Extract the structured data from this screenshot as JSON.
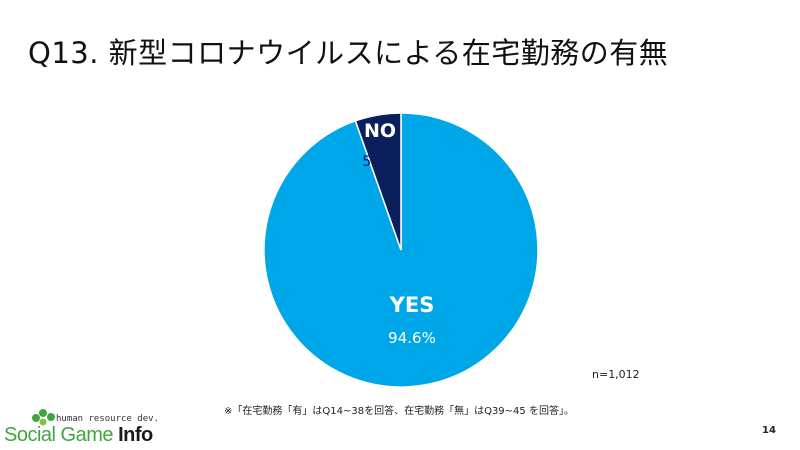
{
  "title": "Q13. 新型コロナウイルスによる在宅勤務の有無",
  "chart_data": {
    "type": "pie",
    "categories": [
      "YES",
      "NO"
    ],
    "values": [
      94.6,
      5.4
    ],
    "value_labels": [
      "94.6%",
      "5.4%"
    ],
    "colors": [
      "#00A7E8",
      "#0A1F5C"
    ],
    "start": "12 o'clock",
    "direction": "clockwise",
    "order": [
      "NO",
      "YES"
    ],
    "legend": "none"
  },
  "sample_size": "n=1,012",
  "footnote": "※「在宅勤務「有」はQ14~38を回答、在宅勤務「無」はQ39~45 を回答」。",
  "page_number": "14",
  "logo": {
    "tagline": "human resource dev.",
    "name_main": "Social Game ",
    "name_info": "Info",
    "color": "#3FA63F"
  }
}
